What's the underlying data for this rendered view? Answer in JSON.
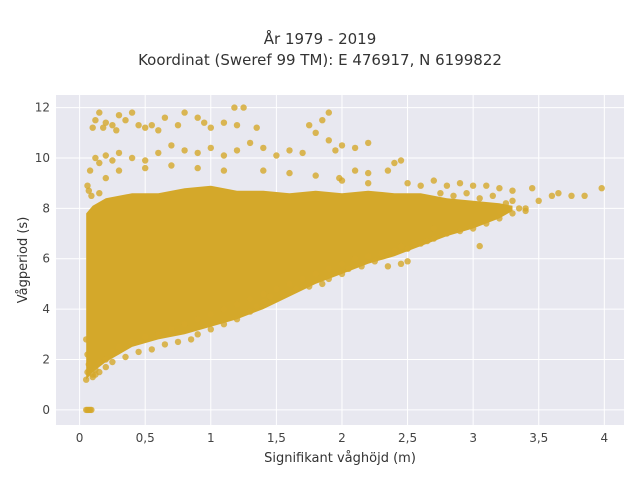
{
  "chart_data": {
    "type": "scatter",
    "title": "År 1979 - 2019",
    "subtitle": "Koordinat (Sweref 99 TM): E 476917, N 6199822",
    "xlabel": "Signifikant våghöjd (m)",
    "ylabel": "Vågperiod (s)",
    "xlim": [
      -0.18,
      4.15
    ],
    "ylim": [
      -0.6,
      12.5
    ],
    "x_ticks": [
      0,
      0.5,
      1,
      1.5,
      2,
      2.5,
      3,
      3.5,
      4
    ],
    "x_tick_labels": [
      "0",
      "0,5",
      "1",
      "1,5",
      "2",
      "2,5",
      "3",
      "3,5",
      "4"
    ],
    "y_ticks": [
      0,
      2,
      4,
      6,
      8,
      10,
      12
    ],
    "y_tick_labels": [
      "0",
      "2",
      "4",
      "6",
      "8",
      "10",
      "12"
    ],
    "grid": true,
    "legend": false,
    "marker_color": "#d4a82a",
    "plot_background": "#e8e8f0",
    "series": [
      {
        "points": [
          [
            0.05,
            0.0
          ],
          [
            0.06,
            0.0
          ],
          [
            0.07,
            0.0
          ],
          [
            0.08,
            0.0
          ],
          [
            0.09,
            0.0
          ],
          [
            0.05,
            1.2
          ],
          [
            0.06,
            1.5
          ],
          [
            0.05,
            2.8
          ],
          [
            0.06,
            2.2
          ],
          [
            0.07,
            1.8
          ],
          [
            0.1,
            1.4
          ],
          [
            0.12,
            1.6
          ],
          [
            0.15,
            1.9
          ],
          [
            0.2,
            2.0
          ],
          [
            0.25,
            2.3
          ],
          [
            0.3,
            2.5
          ],
          [
            0.4,
            2.7
          ],
          [
            0.5,
            2.9
          ],
          [
            0.6,
            3.0
          ],
          [
            0.7,
            3.2
          ],
          [
            0.8,
            3.4
          ],
          [
            0.9,
            3.6
          ],
          [
            1.0,
            3.8
          ],
          [
            1.1,
            4.0
          ],
          [
            1.2,
            4.2
          ],
          [
            1.3,
            4.4
          ],
          [
            1.4,
            4.6
          ],
          [
            1.5,
            4.8
          ],
          [
            1.6,
            5.0
          ],
          [
            1.7,
            5.2
          ],
          [
            1.8,
            5.4
          ],
          [
            1.9,
            5.6
          ],
          [
            2.0,
            5.8
          ],
          [
            2.1,
            6.0
          ],
          [
            2.2,
            6.1
          ],
          [
            2.3,
            6.2
          ],
          [
            2.4,
            6.3
          ],
          [
            2.5,
            6.4
          ],
          [
            2.6,
            6.6
          ],
          [
            2.7,
            6.8
          ],
          [
            2.8,
            7.0
          ],
          [
            2.9,
            7.1
          ],
          [
            3.0,
            7.2
          ],
          [
            3.05,
            6.5
          ],
          [
            3.1,
            7.4
          ],
          [
            3.2,
            7.6
          ],
          [
            3.3,
            7.8
          ],
          [
            3.4,
            8.0
          ],
          [
            3.5,
            8.3
          ],
          [
            3.6,
            8.5
          ],
          [
            3.65,
            8.6
          ],
          [
            3.75,
            8.5
          ],
          [
            3.85,
            8.5
          ],
          [
            3.98,
            8.8
          ],
          [
            3.45,
            8.8
          ],
          [
            3.3,
            8.7
          ],
          [
            3.2,
            8.8
          ],
          [
            3.1,
            8.9
          ],
          [
            3.0,
            8.9
          ],
          [
            2.9,
            9.0
          ],
          [
            2.8,
            8.9
          ],
          [
            2.7,
            9.1
          ],
          [
            2.6,
            8.9
          ],
          [
            2.5,
            9.0
          ],
          [
            2.45,
            9.9
          ],
          [
            2.4,
            9.8
          ],
          [
            2.35,
            9.5
          ],
          [
            2.2,
            9.4
          ],
          [
            2.1,
            9.5
          ],
          [
            1.98,
            9.2
          ],
          [
            1.9,
            11.8
          ],
          [
            1.85,
            11.5
          ],
          [
            1.8,
            11.0
          ],
          [
            1.75,
            11.3
          ],
          [
            1.9,
            10.7
          ],
          [
            2.0,
            10.5
          ],
          [
            1.95,
            10.3
          ],
          [
            2.1,
            10.4
          ],
          [
            2.2,
            10.6
          ],
          [
            1.7,
            10.2
          ],
          [
            1.6,
            10.3
          ],
          [
            1.5,
            10.1
          ],
          [
            1.4,
            10.4
          ],
          [
            1.3,
            10.6
          ],
          [
            1.35,
            11.2
          ],
          [
            1.2,
            11.3
          ],
          [
            1.25,
            12.0
          ],
          [
            1.18,
            12.0
          ],
          [
            1.1,
            11.4
          ],
          [
            1.0,
            11.2
          ],
          [
            0.95,
            11.4
          ],
          [
            0.9,
            11.6
          ],
          [
            0.8,
            11.8
          ],
          [
            0.75,
            11.3
          ],
          [
            0.65,
            11.6
          ],
          [
            0.6,
            11.1
          ],
          [
            0.55,
            11.3
          ],
          [
            0.5,
            11.2
          ],
          [
            0.45,
            11.3
          ],
          [
            0.4,
            11.8
          ],
          [
            0.35,
            11.5
          ],
          [
            0.3,
            11.7
          ],
          [
            0.28,
            11.1
          ],
          [
            0.25,
            11.3
          ],
          [
            0.2,
            11.4
          ],
          [
            0.18,
            11.2
          ],
          [
            0.15,
            11.8
          ],
          [
            0.12,
            11.5
          ],
          [
            0.1,
            11.2
          ],
          [
            0.12,
            10.0
          ],
          [
            0.15,
            9.8
          ],
          [
            0.2,
            10.1
          ],
          [
            0.25,
            9.9
          ],
          [
            0.3,
            10.2
          ],
          [
            0.4,
            10.0
          ],
          [
            0.5,
            9.9
          ],
          [
            0.6,
            10.2
          ],
          [
            0.7,
            10.5
          ],
          [
            0.8,
            10.3
          ],
          [
            0.9,
            10.2
          ],
          [
            1.0,
            10.4
          ],
          [
            1.1,
            10.1
          ],
          [
            1.2,
            10.3
          ],
          [
            0.08,
            9.5
          ],
          [
            0.07,
            8.7
          ],
          [
            0.06,
            8.9
          ],
          [
            0.09,
            8.5
          ],
          [
            0.15,
            8.6
          ],
          [
            0.2,
            9.2
          ],
          [
            0.3,
            9.5
          ],
          [
            0.5,
            9.6
          ],
          [
            0.7,
            9.7
          ],
          [
            0.9,
            9.6
          ],
          [
            1.1,
            9.5
          ],
          [
            1.4,
            9.5
          ],
          [
            1.6,
            9.4
          ],
          [
            1.8,
            9.3
          ],
          [
            2.0,
            9.1
          ],
          [
            2.2,
            9.0
          ],
          [
            3.3,
            8.3
          ],
          [
            3.35,
            8.0
          ],
          [
            3.4,
            7.9
          ],
          [
            3.2,
            7.9
          ],
          [
            3.25,
            8.2
          ],
          [
            3.15,
            8.5
          ],
          [
            3.05,
            8.4
          ],
          [
            2.95,
            8.6
          ],
          [
            2.85,
            8.5
          ],
          [
            2.75,
            8.6
          ],
          [
            2.7,
            7.2
          ],
          [
            2.65,
            6.7
          ],
          [
            2.55,
            6.6
          ],
          [
            2.45,
            6.5
          ],
          [
            2.5,
            5.9
          ],
          [
            2.45,
            5.8
          ],
          [
            2.35,
            5.7
          ],
          [
            2.25,
            5.9
          ],
          [
            2.15,
            5.7
          ],
          [
            2.05,
            5.6
          ],
          [
            2.0,
            5.4
          ],
          [
            1.9,
            5.2
          ],
          [
            1.85,
            5.0
          ],
          [
            1.75,
            4.9
          ],
          [
            1.65,
            4.8
          ],
          [
            1.55,
            4.6
          ],
          [
            1.45,
            4.5
          ],
          [
            1.4,
            4.3
          ],
          [
            1.35,
            4.1
          ],
          [
            1.3,
            3.9
          ],
          [
            1.2,
            3.6
          ],
          [
            1.1,
            3.4
          ],
          [
            1.0,
            3.2
          ],
          [
            0.9,
            3.0
          ],
          [
            0.85,
            2.8
          ],
          [
            0.75,
            2.7
          ],
          [
            0.65,
            2.6
          ],
          [
            0.55,
            2.4
          ],
          [
            0.45,
            2.3
          ],
          [
            0.35,
            2.1
          ],
          [
            0.25,
            1.9
          ],
          [
            0.2,
            1.7
          ],
          [
            0.15,
            1.5
          ],
          [
            0.12,
            1.4
          ],
          [
            0.1,
            1.3
          ]
        ]
      }
    ],
    "density_band": {
      "upper": [
        [
          0.05,
          7.8
        ],
        [
          0.1,
          8.1
        ],
        [
          0.2,
          8.4
        ],
        [
          0.4,
          8.6
        ],
        [
          0.6,
          8.6
        ],
        [
          0.8,
          8.8
        ],
        [
          1.0,
          8.9
        ],
        [
          1.2,
          8.7
        ],
        [
          1.4,
          8.7
        ],
        [
          1.6,
          8.6
        ],
        [
          1.8,
          8.7
        ],
        [
          2.0,
          8.6
        ],
        [
          2.2,
          8.7
        ],
        [
          2.4,
          8.6
        ],
        [
          2.6,
          8.6
        ],
        [
          2.8,
          8.4
        ],
        [
          3.0,
          8.3
        ],
        [
          3.2,
          8.2
        ],
        [
          3.3,
          8.1
        ]
      ],
      "lower": [
        [
          0.05,
          1.2
        ],
        [
          0.1,
          1.5
        ],
        [
          0.2,
          1.9
        ],
        [
          0.3,
          2.2
        ],
        [
          0.4,
          2.5
        ],
        [
          0.6,
          2.8
        ],
        [
          0.8,
          3.0
        ],
        [
          1.0,
          3.3
        ],
        [
          1.2,
          3.6
        ],
        [
          1.4,
          4.0
        ],
        [
          1.6,
          4.5
        ],
        [
          1.8,
          5.0
        ],
        [
          2.0,
          5.4
        ],
        [
          2.2,
          5.8
        ],
        [
          2.4,
          6.1
        ],
        [
          2.6,
          6.5
        ],
        [
          2.8,
          6.9
        ],
        [
          3.0,
          7.2
        ],
        [
          3.2,
          7.6
        ],
        [
          3.3,
          7.9
        ]
      ]
    }
  }
}
